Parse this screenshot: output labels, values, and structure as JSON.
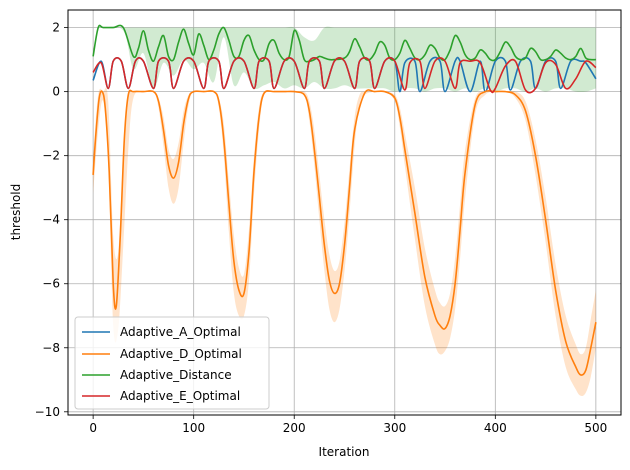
{
  "chart_data": {
    "type": "line",
    "title": "",
    "xlabel": "Iteration",
    "ylabel": "threshold",
    "xlim": [
      -25,
      525
    ],
    "ylim": [
      -10.1,
      2.55
    ],
    "x_ticks": [
      0,
      100,
      200,
      300,
      400,
      500
    ],
    "y_ticks": [
      2,
      0,
      -2,
      -4,
      -6,
      -8,
      -10
    ],
    "x_tick_labels": [
      "0",
      "100",
      "200",
      "300",
      "400",
      "500"
    ],
    "y_tick_labels": [
      "2",
      "0",
      "−2",
      "−4",
      "−6",
      "−8",
      "−10"
    ],
    "grid": true,
    "legend_position": "lower-left",
    "series": [
      {
        "name": "Adaptive_A_Optimal",
        "color": "#1f77b4",
        "x": [
          0,
          8,
          15,
          20,
          28,
          35,
          42,
          50,
          60,
          65,
          75,
          80,
          90,
          100,
          110,
          115,
          125,
          130,
          140,
          150,
          160,
          165,
          175,
          180,
          190,
          200,
          210,
          215,
          225,
          230,
          240,
          250,
          260,
          265,
          275,
          280,
          290,
          300,
          305,
          310,
          320,
          325,
          335,
          345,
          350,
          360,
          365,
          375,
          385,
          390,
          400,
          410,
          415,
          425,
          435,
          440,
          450,
          460,
          465,
          475,
          485,
          490,
          500
        ],
        "values": [
          0.35,
          0.95,
          0.1,
          0.95,
          0.95,
          0.1,
          0.95,
          0.95,
          0.1,
          0.95,
          0.95,
          0.1,
          0.95,
          0.95,
          0.1,
          0.95,
          0.95,
          0.1,
          0.95,
          0.95,
          0.1,
          0.95,
          0.95,
          0.1,
          0.95,
          0.95,
          0.1,
          0.95,
          0.95,
          0.1,
          0.95,
          0.95,
          0.1,
          0.95,
          0.95,
          0.1,
          0.95,
          0.95,
          0.0,
          0.9,
          0.95,
          0.0,
          0.95,
          0.95,
          0.0,
          0.95,
          0.95,
          0.0,
          0.95,
          0.0,
          0.95,
          0.95,
          0.05,
          0.95,
          0.95,
          0.1,
          0.95,
          0.95,
          0.1,
          0.95,
          0.95,
          0.9,
          0.4
        ]
      },
      {
        "name": "Adaptive_D_Optimal",
        "color": "#ff7f0e",
        "x": [
          0,
          3,
          6,
          9,
          12,
          16,
          20,
          23,
          27,
          31,
          35,
          40,
          50,
          60,
          65,
          70,
          75,
          80,
          85,
          90,
          95,
          100,
          110,
          120,
          125,
          130,
          135,
          140,
          145,
          150,
          155,
          160,
          165,
          170,
          180,
          190,
          200,
          210,
          215,
          220,
          225,
          230,
          235,
          240,
          245,
          250,
          255,
          260,
          270,
          280,
          290,
          300,
          305,
          310,
          320,
          330,
          340,
          345,
          350,
          355,
          360,
          365,
          370,
          380,
          390,
          400,
          410,
          420,
          430,
          440,
          450,
          460,
          470,
          480,
          485,
          490,
          495,
          500
        ],
        "values": [
          -2.6,
          -1.2,
          -0.2,
          0.0,
          -0.5,
          -2.5,
          -6.0,
          -6.7,
          -4.5,
          -1.5,
          -0.1,
          0.0,
          0.0,
          0.0,
          -0.3,
          -1.2,
          -2.3,
          -2.7,
          -2.2,
          -1.0,
          -0.2,
          0.0,
          0.0,
          0.0,
          -0.3,
          -1.5,
          -3.5,
          -5.3,
          -6.2,
          -6.3,
          -5.0,
          -2.5,
          -0.8,
          -0.05,
          0.0,
          0.0,
          0.0,
          -0.1,
          -0.6,
          -1.8,
          -3.3,
          -4.8,
          -5.9,
          -6.3,
          -6.0,
          -4.8,
          -3.0,
          -1.2,
          -0.05,
          0.0,
          0.0,
          -0.2,
          -0.8,
          -1.8,
          -3.8,
          -5.8,
          -7.0,
          -7.3,
          -7.4,
          -7.0,
          -6.0,
          -4.3,
          -2.5,
          -0.4,
          0.0,
          0.0,
          0.0,
          -0.1,
          -0.6,
          -2.0,
          -4.0,
          -6.2,
          -7.8,
          -8.6,
          -8.85,
          -8.7,
          -8.0,
          -7.2
        ]
      },
      {
        "name": "Adaptive_Distance",
        "color": "#2ca02c",
        "x": [
          0,
          5,
          10,
          20,
          30,
          40,
          45,
          50,
          55,
          60,
          65,
          70,
          75,
          80,
          85,
          90,
          95,
          100,
          105,
          110,
          115,
          120,
          125,
          130,
          135,
          140,
          145,
          150,
          155,
          160,
          165,
          170,
          175,
          180,
          185,
          190,
          195,
          200,
          205,
          210,
          215,
          220,
          225,
          230,
          235,
          240,
          250,
          255,
          260,
          265,
          270,
          275,
          280,
          285,
          290,
          295,
          300,
          305,
          310,
          315,
          320,
          325,
          330,
          335,
          340,
          345,
          350,
          355,
          360,
          365,
          370,
          375,
          380,
          385,
          390,
          395,
          400,
          405,
          410,
          415,
          420,
          425,
          430,
          435,
          440,
          445,
          450,
          455,
          460,
          465,
          470,
          475,
          480,
          485,
          490,
          495,
          500
        ],
        "values": [
          1.1,
          2.0,
          2.0,
          2.0,
          2.0,
          1.1,
          1.35,
          1.9,
          1.3,
          0.95,
          1.4,
          1.75,
          1.1,
          1.0,
          1.55,
          1.95,
          1.5,
          1.15,
          1.8,
          1.45,
          1.0,
          1.3,
          1.8,
          2.0,
          1.6,
          1.1,
          1.1,
          1.6,
          1.75,
          1.3,
          1.0,
          1.0,
          1.5,
          1.6,
          1.2,
          1.0,
          1.1,
          1.9,
          1.6,
          1.0,
          0.95,
          1.0,
          1.1,
          1.05,
          1.0,
          1.0,
          1.05,
          1.25,
          1.65,
          1.4,
          1.05,
          1.0,
          1.2,
          1.55,
          1.45,
          1.05,
          1.0,
          1.2,
          1.6,
          1.35,
          1.05,
          1.0,
          1.15,
          1.45,
          1.35,
          1.05,
          1.0,
          1.3,
          1.75,
          1.55,
          1.15,
          1.0,
          1.05,
          1.3,
          1.2,
          1.0,
          1.0,
          1.25,
          1.55,
          1.4,
          1.1,
          1.0,
          1.05,
          1.35,
          1.25,
          1.0,
          1.0,
          1.1,
          1.3,
          1.2,
          1.05,
          1.0,
          1.1,
          1.35,
          1.05,
          1.0,
          1.0
        ]
      },
      {
        "name": "Adaptive_E_Optimal",
        "color": "#d62728",
        "x": [
          0,
          8,
          15,
          20,
          28,
          35,
          42,
          50,
          60,
          65,
          75,
          80,
          90,
          100,
          110,
          115,
          125,
          130,
          140,
          150,
          160,
          165,
          175,
          180,
          190,
          200,
          210,
          215,
          225,
          230,
          240,
          250,
          260,
          265,
          275,
          280,
          290,
          300,
          310,
          315,
          325,
          330,
          340,
          350,
          360,
          365,
          375,
          385,
          395,
          400,
          410,
          420,
          430,
          440,
          450,
          460,
          470,
          480,
          490,
          500
        ],
        "values": [
          0.6,
          0.9,
          0.1,
          0.95,
          0.95,
          0.1,
          0.95,
          0.95,
          0.1,
          0.95,
          0.95,
          0.1,
          0.95,
          0.95,
          0.1,
          0.95,
          0.95,
          0.1,
          0.95,
          0.95,
          0.1,
          0.95,
          0.95,
          0.1,
          0.95,
          0.95,
          0.1,
          0.95,
          0.95,
          0.1,
          0.95,
          0.95,
          0.1,
          0.95,
          0.95,
          0.1,
          0.95,
          0.95,
          0.05,
          0.9,
          0.95,
          0.1,
          0.95,
          0.95,
          0.1,
          0.9,
          0.95,
          0.9,
          0.05,
          0.1,
          0.8,
          0.95,
          0.05,
          0.1,
          0.9,
          0.85,
          0.1,
          0.4,
          0.95,
          0.75
        ]
      }
    ],
    "bands": [
      {
        "series": "Adaptive_D_Optimal",
        "color": "#ff7f0e",
        "x": [
          0,
          5,
          10,
          15,
          20,
          25,
          30,
          35,
          40,
          50,
          60,
          65,
          70,
          75,
          80,
          85,
          90,
          95,
          100,
          110,
          120,
          125,
          130,
          135,
          140,
          145,
          150,
          155,
          160,
          165,
          170,
          180,
          190,
          200,
          210,
          215,
          220,
          225,
          230,
          235,
          240,
          245,
          250,
          255,
          260,
          265,
          270,
          280,
          290,
          300,
          305,
          310,
          320,
          330,
          340,
          345,
          350,
          355,
          360,
          365,
          370,
          380,
          390,
          400,
          410,
          420,
          430,
          440,
          450,
          460,
          470,
          480,
          485,
          490,
          495,
          500
        ],
        "upper": [
          -2.0,
          -0.1,
          0.0,
          -0.3,
          -4.5,
          -5.0,
          -2.0,
          -0.1,
          0.0,
          0.0,
          0.0,
          -0.2,
          -0.8,
          -1.8,
          -2.1,
          -1.6,
          -0.6,
          -0.1,
          0.0,
          0.0,
          0.0,
          -0.2,
          -1.0,
          -2.8,
          -4.5,
          -5.5,
          -5.7,
          -4.3,
          -2.0,
          -0.5,
          0.0,
          0.0,
          0.0,
          0.0,
          0.0,
          -0.3,
          -1.2,
          -2.6,
          -4.0,
          -5.1,
          -5.6,
          -5.3,
          -4.1,
          -2.4,
          -0.8,
          -0.1,
          0.0,
          0.0,
          0.0,
          -0.1,
          -0.5,
          -1.3,
          -3.0,
          -4.9,
          -6.2,
          -6.6,
          -6.7,
          -6.3,
          -5.2,
          -3.5,
          -1.8,
          -0.2,
          0.0,
          0.0,
          0.0,
          0.0,
          -0.3,
          -1.5,
          -3.3,
          -5.4,
          -7.0,
          -7.9,
          -8.2,
          -8.0,
          -7.1,
          -6.2
        ],
        "lower": [
          -3.2,
          -1.2,
          -0.3,
          -2.2,
          -7.3,
          -7.4,
          -4.8,
          -1.8,
          -0.2,
          0.0,
          0.0,
          -0.5,
          -1.7,
          -3.0,
          -3.5,
          -3.0,
          -1.6,
          -0.4,
          0.0,
          0.0,
          0.0,
          -0.5,
          -2.0,
          -4.4,
          -6.3,
          -7.0,
          -7.0,
          -5.9,
          -3.2,
          -1.2,
          -0.1,
          0.0,
          0.0,
          0.0,
          -0.1,
          -0.9,
          -2.3,
          -4.0,
          -5.6,
          -6.8,
          -7.2,
          -6.8,
          -5.6,
          -3.8,
          -1.7,
          -0.4,
          -0.1,
          0.0,
          0.0,
          -0.3,
          -1.1,
          -2.3,
          -4.6,
          -6.7,
          -7.9,
          -8.2,
          -8.1,
          -7.7,
          -6.8,
          -5.2,
          -3.3,
          -0.7,
          -0.1,
          0.0,
          0.0,
          -0.2,
          -0.9,
          -2.6,
          -4.7,
          -7.0,
          -8.6,
          -9.3,
          -9.5,
          -9.4,
          -8.9,
          -8.0
        ]
      },
      {
        "series": "Adaptive_Distance",
        "color": "#2ca02c",
        "x": [
          0,
          5,
          10,
          30,
          40,
          50,
          60,
          70,
          80,
          90,
          100,
          110,
          120,
          130,
          140,
          150,
          160,
          170,
          180,
          190,
          200,
          210,
          220,
          230,
          240,
          250,
          260,
          270,
          280,
          290,
          300,
          310,
          320,
          330,
          340,
          350,
          360,
          370,
          380,
          390,
          400,
          410,
          420,
          430,
          440,
          450,
          460,
          470,
          480,
          490,
          500
        ],
        "upper": [
          1.2,
          2.0,
          2.0,
          2.0,
          2.0,
          2.0,
          2.0,
          2.0,
          2.0,
          2.0,
          2.0,
          2.0,
          2.0,
          2.0,
          2.0,
          2.0,
          2.0,
          2.0,
          2.0,
          2.0,
          2.0,
          1.7,
          1.6,
          2.0,
          2.0,
          2.0,
          2.0,
          2.0,
          2.0,
          2.0,
          2.0,
          2.0,
          2.0,
          2.0,
          2.0,
          2.0,
          2.0,
          2.0,
          2.0,
          2.0,
          2.0,
          2.0,
          2.0,
          2.0,
          2.0,
          2.0,
          2.0,
          2.0,
          2.0,
          2.0,
          2.0
        ],
        "lower": [
          1.0,
          1.9,
          2.0,
          1.9,
          0.7,
          1.2,
          0.1,
          0.9,
          0.5,
          1.0,
          0.7,
          0.9,
          0.3,
          1.7,
          0.2,
          0.6,
          0.1,
          0.2,
          0.3,
          0.1,
          0.2,
          0.1,
          0.3,
          0.1,
          0.1,
          0.2,
          0.1,
          0.1,
          0.1,
          0.1,
          0.0,
          0.1,
          0.1,
          0.0,
          0.1,
          0.1,
          0.0,
          0.1,
          0.0,
          0.1,
          0.0,
          0.1,
          0.1,
          0.0,
          0.1,
          0.0,
          0.1,
          0.1,
          0.0,
          0.0,
          0.1
        ]
      }
    ]
  }
}
